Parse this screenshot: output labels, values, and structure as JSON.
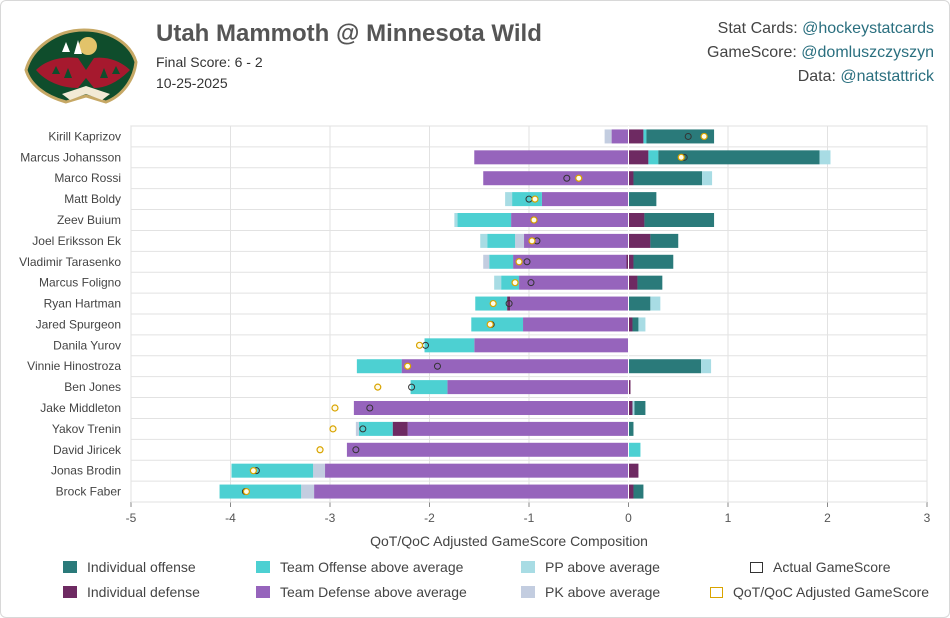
{
  "header": {
    "title": "Utah Mammoth @ Minnesota Wild",
    "final_score": "Final Score: 6 - 2",
    "date": "10-25-2025"
  },
  "credits": [
    {
      "label": "Stat Cards: ",
      "handle": "@hockeystatcards"
    },
    {
      "label": "GameScore: ",
      "handle": "@domluszczyszyn"
    },
    {
      "label": "Data: ",
      "handle": "@natstattrick"
    }
  ],
  "colors": {
    "ind_off": "#2a7a7a",
    "ind_def": "#6e2a62",
    "team_off": "#4dd0d2",
    "team_def": "#9664bc",
    "pp": "#a8dce4",
    "pk": "#c3cde0",
    "actual": "#333333",
    "adjusted": "#d9a400"
  },
  "chart_data": {
    "type": "bar",
    "orientation": "horizontal-stacked-diverging",
    "xlabel": "QoT/QoC Adjusted GameScore Composition",
    "xlim": [
      -5,
      3
    ],
    "xticks": [
      -5,
      -4,
      -3,
      -2,
      -1,
      0,
      1,
      2,
      3
    ],
    "grid": true,
    "legend": [
      {
        "key": "ind_off",
        "label": "Individual offense"
      },
      {
        "key": "ind_def",
        "label": "Individual defense"
      },
      {
        "key": "team_off",
        "label": "Team Offense above average"
      },
      {
        "key": "team_def",
        "label": "Team Defense above average"
      },
      {
        "key": "pp",
        "label": "PP above average"
      },
      {
        "key": "pk",
        "label": "PK above average"
      },
      {
        "key": "actual",
        "label": "Actual GameScore"
      },
      {
        "key": "adjusted",
        "label": "QoT/QoC Adjusted GameScore"
      }
    ],
    "players": [
      {
        "name": "Kirill Kaprizov",
        "pos": [
          [
            "ind_def",
            0.15
          ],
          [
            "team_off",
            0.03
          ],
          [
            "ind_off",
            0.68
          ]
        ],
        "neg": [
          [
            "team_def",
            -0.17
          ],
          [
            "pk",
            -0.07
          ]
        ],
        "actual": 0.6,
        "adjusted": 0.76
      },
      {
        "name": "Marcus Johansson",
        "pos": [
          [
            "ind_def",
            0.2
          ],
          [
            "team_off",
            0.1
          ],
          [
            "ind_off",
            1.62
          ],
          [
            "pp",
            0.11
          ]
        ],
        "neg": [
          [
            "team_def",
            -1.55
          ]
        ],
        "actual": 0.56,
        "adjusted": 0.53
      },
      {
        "name": "Marco Rossi",
        "pos": [
          [
            "ind_def",
            0.05
          ],
          [
            "ind_off",
            0.69
          ],
          [
            "pp",
            0.1
          ]
        ],
        "neg": [
          [
            "team_def",
            -1.46
          ]
        ],
        "actual": -0.62,
        "adjusted": -0.5
      },
      {
        "name": "Matt Boldy",
        "pos": [
          [
            "ind_off",
            0.28
          ]
        ],
        "neg": [
          [
            "team_def",
            -0.87
          ],
          [
            "team_off",
            -0.3
          ],
          [
            "pp",
            -0.07
          ]
        ],
        "actual": -1.0,
        "adjusted": -0.94
      },
      {
        "name": "Zeev Buium",
        "pos": [
          [
            "ind_def",
            0.16
          ],
          [
            "ind_off",
            0.7
          ]
        ],
        "neg": [
          [
            "team_def",
            -1.18
          ],
          [
            "team_off",
            -0.54
          ],
          [
            "pp",
            -0.03
          ]
        ],
        "actual": -0.95,
        "adjusted": -0.95
      },
      {
        "name": "Joel Eriksson Ek",
        "pos": [
          [
            "ind_def",
            0.22
          ],
          [
            "ind_off",
            0.28
          ]
        ],
        "neg": [
          [
            "team_def",
            -1.05
          ],
          [
            "pk",
            -0.09
          ],
          [
            "team_off",
            -0.28
          ],
          [
            "pp",
            -0.07
          ]
        ],
        "actual": -0.92,
        "adjusted": -0.97
      },
      {
        "name": "Vladimir Tarasenko",
        "pos": [
          [
            "ind_def",
            0.05
          ],
          [
            "ind_off",
            0.4
          ]
        ],
        "neg": [
          [
            "ind_def",
            -0.02
          ],
          [
            "team_def",
            -1.14
          ],
          [
            "team_off",
            -0.24
          ],
          [
            "pk",
            -0.06
          ]
        ],
        "actual": -1.02,
        "adjusted": -1.1
      },
      {
        "name": "Marcus Foligno",
        "pos": [
          [
            "ind_def",
            0.09
          ],
          [
            "ind_off",
            0.25
          ]
        ],
        "neg": [
          [
            "team_def",
            -1.1
          ],
          [
            "team_off",
            -0.18
          ],
          [
            "pp",
            -0.07
          ]
        ],
        "actual": -0.98,
        "adjusted": -1.14
      },
      {
        "name": "Ryan Hartman",
        "pos": [
          [
            "ind_off",
            0.22
          ],
          [
            "pp",
            0.1
          ]
        ],
        "neg": [
          [
            "team_def",
            -1.19
          ],
          [
            "ind_def",
            -0.03
          ],
          [
            "team_off",
            -0.32
          ]
        ],
        "actual": -1.2,
        "adjusted": -1.36
      },
      {
        "name": "Jared Spurgeon",
        "pos": [
          [
            "ind_def",
            0.04
          ],
          [
            "ind_off",
            0.06
          ],
          [
            "pp",
            0.07
          ]
        ],
        "neg": [
          [
            "team_def",
            -1.06
          ],
          [
            "team_off",
            -0.52
          ]
        ],
        "actual": -1.38,
        "adjusted": -1.39
      },
      {
        "name": "Danila Yurov",
        "pos": [],
        "neg": [
          [
            "team_def",
            -1.55
          ],
          [
            "team_off",
            -0.5
          ]
        ],
        "actual": -2.04,
        "adjusted": -2.1
      },
      {
        "name": "Vinnie Hinostroza",
        "pos": [
          [
            "ind_off",
            0.73
          ],
          [
            "pp",
            0.1
          ]
        ],
        "neg": [
          [
            "team_def",
            -2.28
          ],
          [
            "team_off",
            -0.45
          ]
        ],
        "actual": -1.92,
        "adjusted": -2.22
      },
      {
        "name": "Ben Jones",
        "pos": [
          [
            "ind_def",
            0.02
          ]
        ],
        "neg": [
          [
            "team_def",
            -1.82
          ],
          [
            "team_off",
            -0.37
          ]
        ],
        "actual": -2.18,
        "adjusted": -2.52
      },
      {
        "name": "Jake Middleton",
        "pos": [
          [
            "ind_def",
            0.04
          ],
          [
            "pp",
            0.02
          ],
          [
            "ind_off",
            0.11
          ]
        ],
        "neg": [
          [
            "team_def",
            -2.76
          ]
        ],
        "actual": -2.6,
        "adjusted": -2.95
      },
      {
        "name": "Yakov Trenin",
        "pos": [
          [
            "ind_off",
            0.05
          ]
        ],
        "neg": [
          [
            "team_def",
            -2.22
          ],
          [
            "ind_def",
            -0.15
          ],
          [
            "team_off",
            -0.34
          ],
          [
            "pk",
            -0.03
          ]
        ],
        "actual": -2.67,
        "adjusted": -2.97
      },
      {
        "name": "David Jiricek",
        "pos": [
          [
            "team_off",
            0.12
          ]
        ],
        "neg": [
          [
            "team_def",
            -2.83
          ]
        ],
        "actual": -2.74,
        "adjusted": -3.1
      },
      {
        "name": "Jonas Brodin",
        "pos": [
          [
            "ind_def",
            0.1
          ]
        ],
        "neg": [
          [
            "team_def",
            -3.05
          ],
          [
            "pk",
            -0.12
          ],
          [
            "team_off",
            -0.82
          ]
        ],
        "actual": -3.74,
        "adjusted": -3.77
      },
      {
        "name": "Brock Faber",
        "pos": [
          [
            "ind_def",
            0.05
          ],
          [
            "ind_off",
            0.1
          ]
        ],
        "neg": [
          [
            "team_def",
            -3.16
          ],
          [
            "pk",
            -0.13
          ],
          [
            "team_off",
            -0.82
          ]
        ],
        "actual": -3.85,
        "adjusted": -3.84
      }
    ]
  }
}
